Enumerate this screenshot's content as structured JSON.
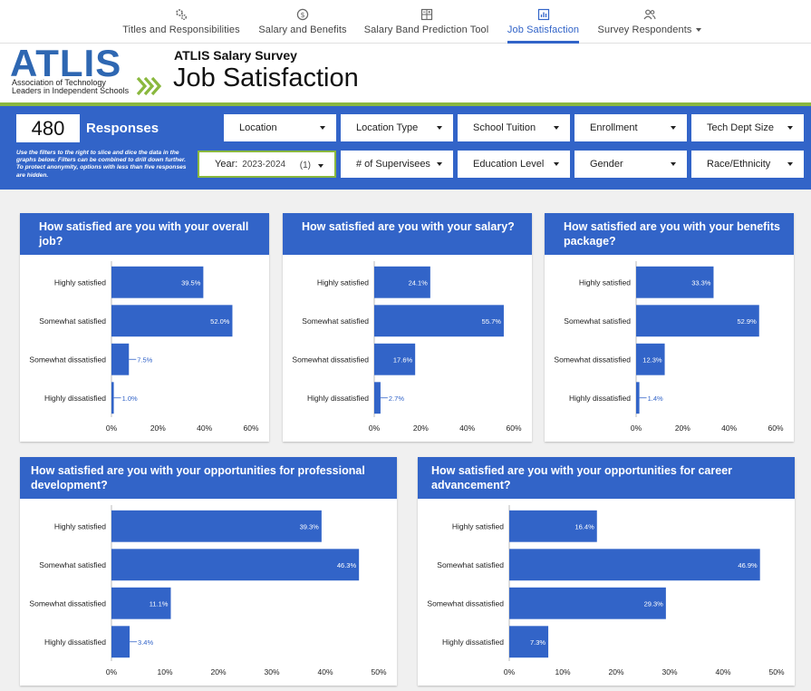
{
  "nav": {
    "tabs": [
      {
        "label": "Titles and Responsibilities",
        "icon": "gears-icon"
      },
      {
        "label": "Salary and Benefits",
        "icon": "dollar-coin-icon"
      },
      {
        "label": "Salary Band Prediction Tool",
        "icon": "calculator-icon"
      },
      {
        "label": "Job Satisfaction",
        "icon": "bar-chart-icon",
        "active": true
      },
      {
        "label": "Survey Respondents",
        "icon": "people-icon",
        "dropdown": true
      }
    ]
  },
  "header": {
    "logo_text": "ATLIS",
    "logo_sub1": "Association of Technology",
    "logo_sub2": "Leaders in Independent Schools",
    "subtitle": "ATLIS Salary Survey",
    "title": "Job Satisfaction"
  },
  "colors": {
    "brand_blue": "#3264c8",
    "accent_green": "#8ab83e",
    "bar": "#3264c8"
  },
  "filters": {
    "responses_count": "480",
    "responses_label": "Responses",
    "help_text": "Use the filters to the right to slice and dice the data in the graphs below. Filters can be combined to drill down further. To protect  anonymity, options with less than five responses are hidden.",
    "row1": [
      "Location",
      "Location Type",
      "School Tuition",
      "Enrollment",
      "Tech Dept Size"
    ],
    "year": {
      "label": "Year:",
      "value": "2023-2024",
      "count": "(1)"
    },
    "row2": [
      "# of Supervisees",
      "Education Level",
      "Gender",
      "Race/Ethnicity"
    ]
  },
  "chart_data": [
    {
      "type": "bar",
      "title": "How satisfied are you with your overall job?",
      "categories": [
        "Highly satisfied",
        "Somewhat satisfied",
        "Somewhat dissatisfied",
        "Highly dissatisfied"
      ],
      "values": [
        39.5,
        52.0,
        7.5,
        1.0
      ],
      "labels": [
        "39.5%",
        "52.0%",
        "7.5%",
        "1.0%"
      ],
      "xlim": [
        0,
        60
      ],
      "ticks": [
        "0%",
        "20%",
        "40%",
        "60%"
      ]
    },
    {
      "type": "bar",
      "title": "How satisfied are you with your salary?",
      "categories": [
        "Highly satisfied",
        "Somewhat satisfied",
        "Somewhat dissatisfied",
        "Highly dissatisfied"
      ],
      "values": [
        24.1,
        55.7,
        17.6,
        2.7
      ],
      "labels": [
        "24.1%",
        "55.7%",
        "17.6%",
        "2.7%"
      ],
      "xlim": [
        0,
        60
      ],
      "ticks": [
        "0%",
        "20%",
        "40%",
        "60%"
      ]
    },
    {
      "type": "bar",
      "title": "How satisfied are you with your benefits package?",
      "categories": [
        "Highly satisfied",
        "Somewhat satisfied",
        "Somewhat dissatisfied",
        "Highly dissatisfied"
      ],
      "values": [
        33.3,
        52.9,
        12.3,
        1.4
      ],
      "labels": [
        "33.3%",
        "52.9%",
        "12.3%",
        "1.4%"
      ],
      "xlim": [
        0,
        60
      ],
      "ticks": [
        "0%",
        "20%",
        "40%",
        "60%"
      ]
    },
    {
      "type": "bar",
      "title": "How satisfied are you with your opportunities for professional development?",
      "categories": [
        "Highly satisfied",
        "Somewhat satisfied",
        "Somewhat dissatisfied",
        "Highly dissatisfied"
      ],
      "values": [
        39.3,
        46.3,
        11.1,
        3.4
      ],
      "labels": [
        "39.3%",
        "46.3%",
        "11.1%",
        "3.4%"
      ],
      "xlim": [
        0,
        50
      ],
      "ticks": [
        "0%",
        "10%",
        "20%",
        "30%",
        "40%",
        "50%"
      ]
    },
    {
      "type": "bar",
      "title": "How satisfied are you with your opportunities for career advancement?",
      "categories": [
        "Highly satisfied",
        "Somewhat satisfied",
        "Somewhat dissatisfied",
        "Highly dissatisfied"
      ],
      "values": [
        16.4,
        46.9,
        29.3,
        7.3
      ],
      "labels": [
        "16.4%",
        "46.9%",
        "29.3%",
        "7.3%"
      ],
      "xlim": [
        0,
        50
      ],
      "ticks": [
        "0%",
        "10%",
        "20%",
        "30%",
        "40%",
        "50%"
      ]
    }
  ]
}
